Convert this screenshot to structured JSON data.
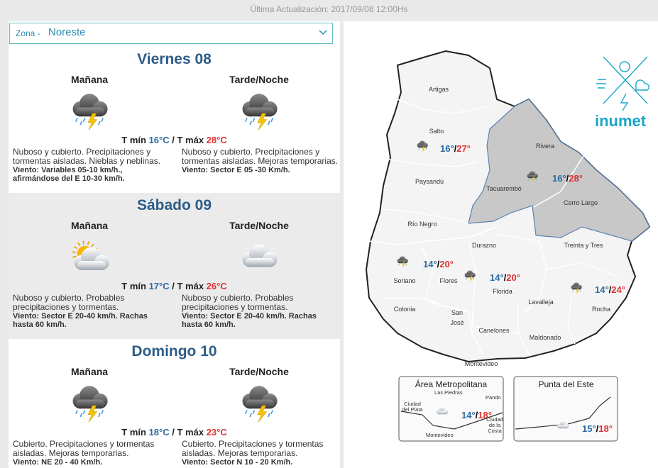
{
  "header": {
    "updated": "Última Actualización: 2017/09/08 12:00Hs"
  },
  "zone": {
    "label": "Zona -",
    "value": "Noreste"
  },
  "labels": {
    "tmin": "T mín",
    "sep": "/",
    "tmax": "T máx"
  },
  "days": [
    {
      "title": "Viernes 08",
      "min": "16°C",
      "max": "28°C",
      "periods": [
        {
          "name": "Mañana",
          "text": "Nuboso y cubierto. Precipitaciones y tormentas aisladas. Nieblas y neblinas.",
          "wind": "Viento: Variables 05-10 km/h., afirmándose del E 10-30 km/h."
        },
        {
          "name": "Tarde/Noche",
          "text": "Nuboso y cubierto. Precipitaciones y tormentas aisladas. Mejoras temporarias.",
          "wind": "Viento: Sector E 05 -30 Km/h."
        }
      ]
    },
    {
      "title": "Sábado 09",
      "min": "17°C",
      "max": "26°C",
      "periods": [
        {
          "name": "Mañana",
          "text": "Nuboso y cubierto. Probables precipitaciones y tormentas.",
          "wind": "Viento: Sector E 20-40 km/h. Rachas hasta 60 km/h."
        },
        {
          "name": "Tarde/Noche",
          "text": "Nuboso y cubierto. Probables precipitaciones y tormentas.",
          "wind": "Viento: Sector E 20-40 km/h. Rachas hasta 60 km/h."
        }
      ]
    },
    {
      "title": "Domingo 10",
      "min": "18°C",
      "max": "23°C",
      "periods": [
        {
          "name": "Mañana",
          "text": "Cubierto. Precipitaciones y tormentas aisladas. Mejoras temporarias.",
          "wind": "Viento: NE 20 - 40 Km/h."
        },
        {
          "name": "Tarde/Noche",
          "text": "Cubierto. Precipitaciones y tormentas aisladas. Mejoras temporarias.",
          "wind": "Viento: Sector N 10 - 20 Km/h."
        }
      ]
    }
  ],
  "map": {
    "logo": "inumet",
    "regions": [
      "Artigas",
      "Salto",
      "Rivera",
      "Paysandú",
      "Tacuarembó",
      "Cerro Largo",
      "Río Negro",
      "Durazno",
      "Treinta y Tres",
      "Soriano",
      "Flores",
      "Florida",
      "Lavalleja",
      "Rocha",
      "Colonia",
      "San José",
      "Canelones",
      "Maldonado",
      "Montevideo"
    ],
    "temps": [
      {
        "min": "16°",
        "max": "27°"
      },
      {
        "min": "16°",
        "max": "28°"
      },
      {
        "min": "14°",
        "max": "20°"
      },
      {
        "min": "14°",
        "max": "20°"
      },
      {
        "min": "14°",
        "max": "24°"
      }
    ],
    "insets": [
      {
        "title": "Área Metropolitana",
        "places": [
          "Las Piedras",
          "Pando",
          "Ciudad del Plata",
          "Ciudad de la Costa",
          "Montevideo"
        ],
        "min": "14°",
        "max": "18°"
      },
      {
        "title": "Punta del Este",
        "places": [],
        "min": "15°",
        "max": "18°"
      }
    ]
  }
}
